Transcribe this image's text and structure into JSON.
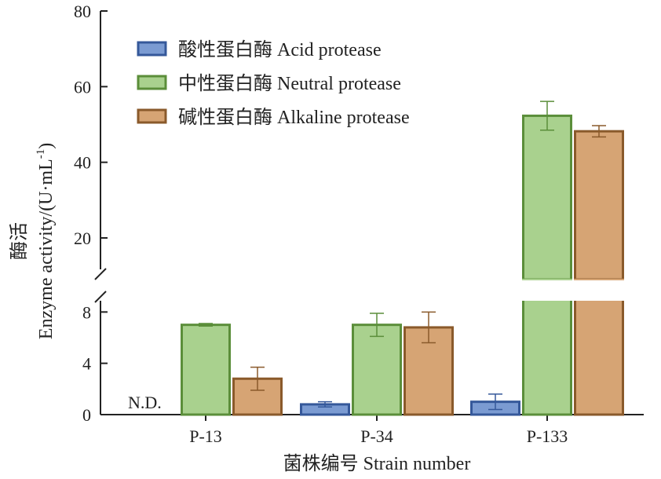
{
  "chart_data": {
    "type": "bar",
    "categories": [
      "P-13",
      "P-34",
      "P-133"
    ],
    "series": [
      {
        "name": "酸性蛋白酶 Acid protease",
        "values": [
          null,
          0.8,
          1.0
        ],
        "errors": [
          null,
          0.2,
          0.6
        ],
        "color": "#7b9bd2",
        "edge": "#35589a"
      },
      {
        "name": "中性蛋白酶 Neutral protease",
        "values": [
          7.0,
          7.0,
          52.3
        ],
        "errors": [
          0.1,
          0.9,
          3.8
        ],
        "color": "#a9d18e",
        "edge": "#5b8e3a"
      },
      {
        "name": "碱性蛋白酶 Alkaline protease",
        "values": [
          2.8,
          6.8,
          48.2
        ],
        "errors": [
          0.9,
          1.2,
          1.5
        ],
        "color": "#d6a474",
        "edge": "#8a5a2b"
      }
    ],
    "nd_label": "N.D.",
    "xlabel": "菌株编号 Strain number",
    "ylabel_cn": "酶活",
    "ylabel_en": "Enzyme activity/(U·mL-1)",
    "ylabel_en_main": "Enzyme activity/(U·mL",
    "ylabel_en_sup": "-1",
    "ylabel_en_end": ")",
    "axis_break": true,
    "y_lower": {
      "range": [
        0,
        9
      ],
      "ticks": [
        "0",
        "4",
        "8"
      ]
    },
    "y_upper": {
      "range": [
        9,
        80
      ],
      "ticks": [
        "20",
        "40",
        "60",
        "80"
      ]
    },
    "legend_position": "top-left",
    "grid": false
  }
}
